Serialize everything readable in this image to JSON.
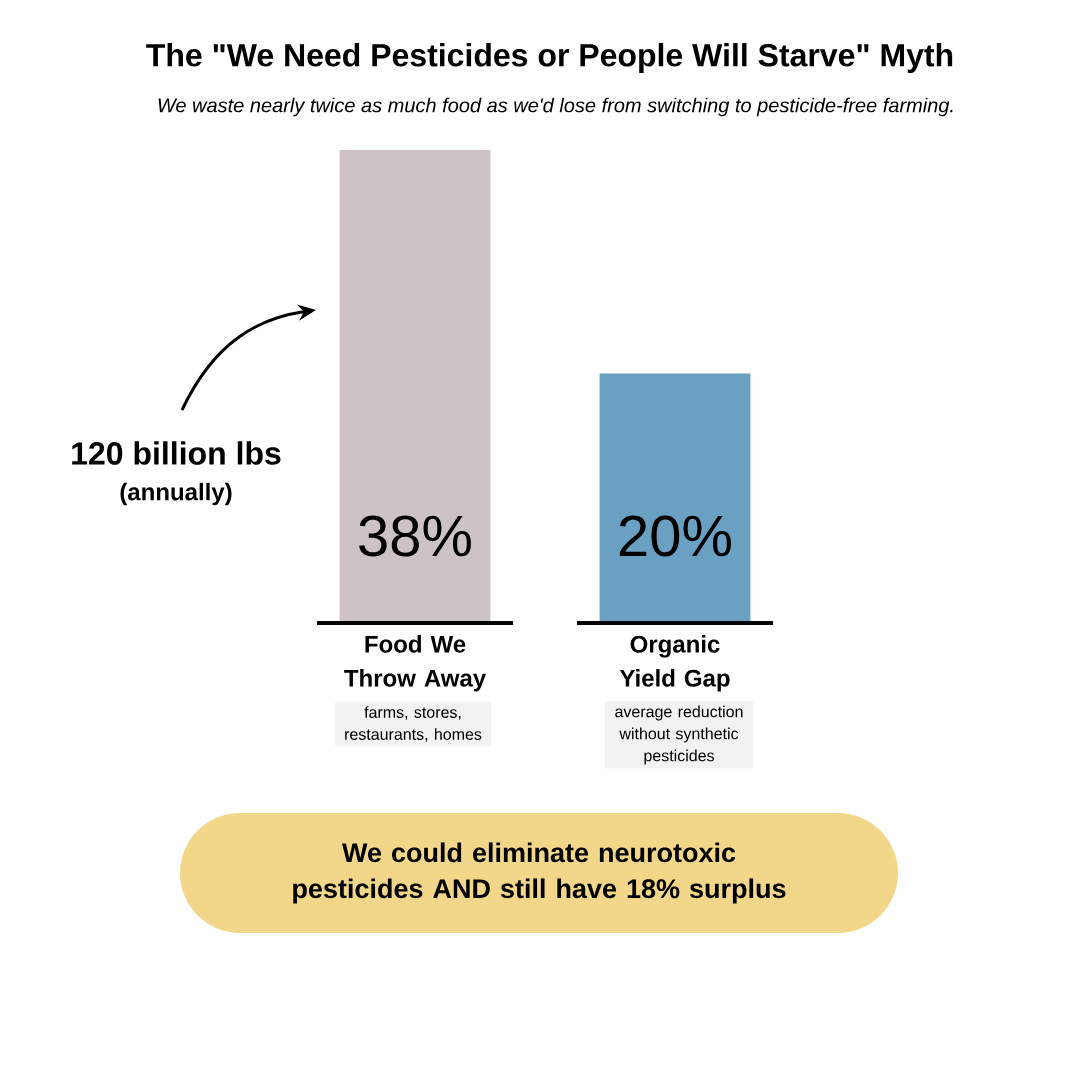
{
  "chart_data": {
    "type": "bar",
    "title": "The \"We Need Pesticides or People Will Starve\" Myth",
    "subtitle": "We waste nearly twice as much food as we'd lose from switching to pesticide-free farming.",
    "categories": [
      "Food We Throw Away",
      "Organic Yield Gap"
    ],
    "values": [
      38,
      20
    ],
    "colors": [
      "#cdc3c4",
      "#6aa1c2"
    ],
    "value_labels": [
      "38%",
      "20%"
    ],
    "annotations": [
      "120 billion lbs",
      "(annually)",
      "farms, stores, restaurants, homes",
      "average reduction without synthetic pesticides",
      "We could eliminate neurotoxic pesticides AND still have 18% surplus"
    ]
  }
}
